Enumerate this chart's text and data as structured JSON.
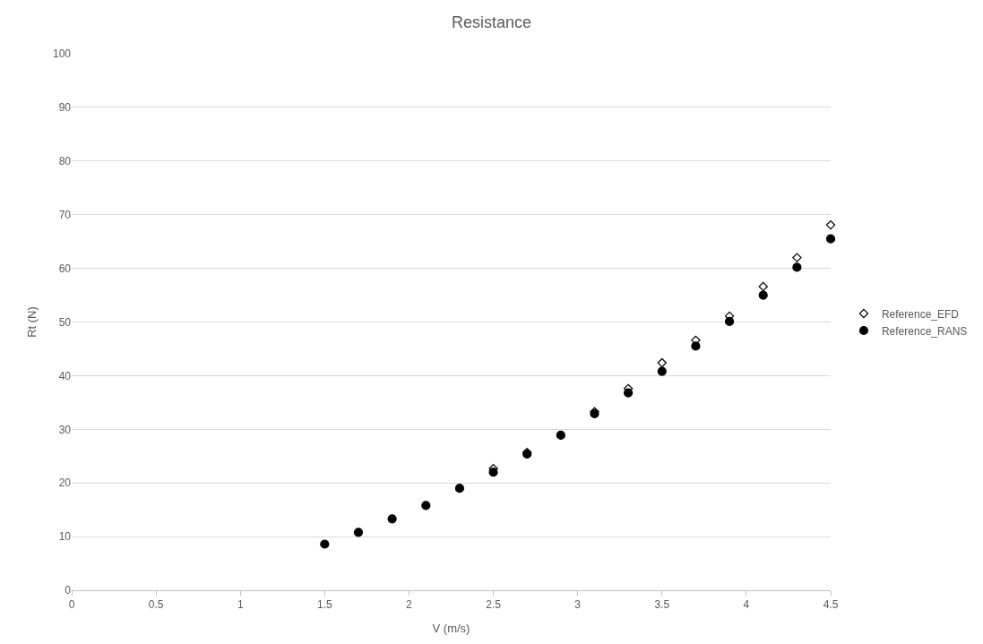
{
  "chart_data": {
    "type": "scatter",
    "title": "Resistance",
    "xlabel": "V (m/s)",
    "ylabel": "Rt (N)",
    "x": [
      1.5,
      1.7,
      1.9,
      2.1,
      2.3,
      2.5,
      2.7,
      2.9,
      3.1,
      3.3,
      3.5,
      3.7,
      3.9,
      4.1,
      4.3,
      4.5
    ],
    "series": [
      {
        "name": "Reference_EFD",
        "color": "#000000",
        "marker": "diamond-open",
        "values": [
          null,
          null,
          null,
          null,
          null,
          22.7,
          25.7,
          null,
          33.3,
          37.6,
          42.4,
          46.6,
          51.1,
          56.6,
          62.0,
          68.1
        ]
      },
      {
        "name": "Reference_RANS",
        "color": "#000000",
        "marker": "circle",
        "values": [
          8.6,
          10.8,
          13.3,
          15.8,
          19.0,
          22.0,
          25.4,
          28.9,
          32.9,
          36.8,
          40.8,
          45.5,
          50.1,
          55.0,
          60.2,
          65.5
        ]
      }
    ],
    "xlim": [
      0,
      4.5
    ],
    "xticks": [
      0,
      0.5,
      1,
      1.5,
      2,
      2.5,
      3,
      3.5,
      4,
      4.5
    ],
    "ylim": [
      0,
      100
    ],
    "yticks": [
      0,
      10,
      20,
      30,
      40,
      50,
      60,
      70,
      80,
      90,
      100
    ],
    "grid": "y",
    "legend": "right"
  }
}
